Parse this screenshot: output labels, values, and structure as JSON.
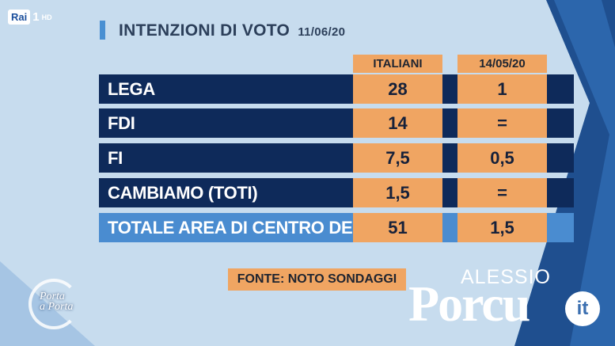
{
  "channel": {
    "network": "Rai",
    "number": "1",
    "quality": "HD"
  },
  "header": {
    "title": "INTENZIONI DI VOTO",
    "date": "11/06/20"
  },
  "columns": [
    "ITALIANI",
    "14/05/20"
  ],
  "rows": [
    {
      "label": "LEGA",
      "value": "28",
      "change": "1"
    },
    {
      "label": "FDI",
      "value": "14",
      "change": "="
    },
    {
      "label": "FI",
      "value": "7,5",
      "change": "0,5"
    },
    {
      "label": "CAMBIAMO (TOTI)",
      "value": "1,5",
      "change": "="
    }
  ],
  "total": {
    "label": "TOTALE AREA DI CENTRO DESTRA",
    "value": "51",
    "change": "1,5"
  },
  "source": "FONTE: NOTO SONDAGGI",
  "show_logo": {
    "line1": "Porta",
    "line2": "a Porta"
  },
  "watermark": {
    "small": "ALESSIO",
    "big": "Porcu",
    "suffix": "it"
  },
  "colors": {
    "row_dark": "#0e2a5a",
    "row_total": "#4a8cd0",
    "cell": "#f0a562",
    "background": "#c7dcee"
  }
}
